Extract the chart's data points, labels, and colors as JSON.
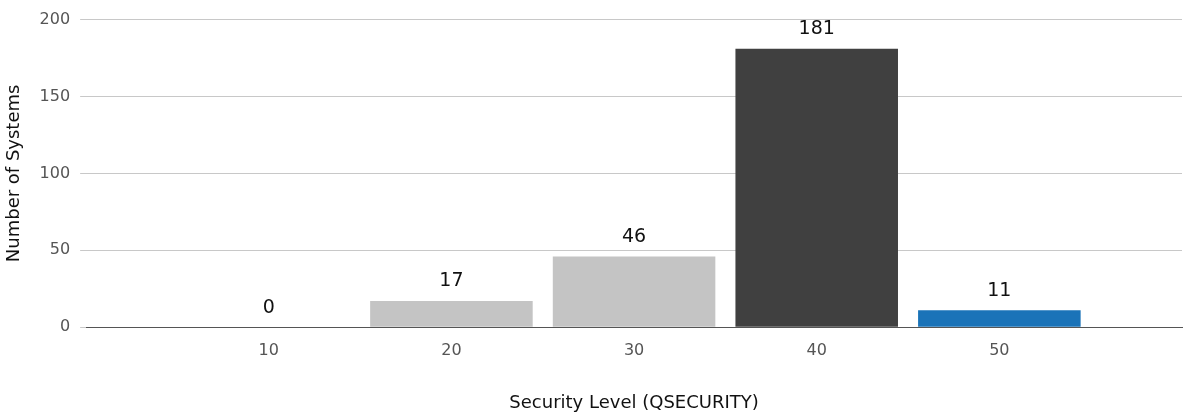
{
  "chart_data": {
    "type": "bar",
    "xlabel": "Security Level (QSECURITY)",
    "ylabel": "Number of Systems",
    "x": [
      10,
      20,
      30,
      40,
      50
    ],
    "values": [
      0,
      17,
      46,
      181,
      11
    ],
    "colors": [
      "#c4c4c4",
      "#c4c4c4",
      "#c4c4c4",
      "#404040",
      "#1a73b8"
    ],
    "xlim": [
      0,
      60
    ],
    "xticks": [
      10,
      20,
      30,
      40,
      50
    ],
    "ylim": [
      0,
      200
    ],
    "yticks": [
      0,
      50,
      100,
      150,
      200
    ],
    "grid": "y",
    "data_labels": true,
    "legend": false
  }
}
